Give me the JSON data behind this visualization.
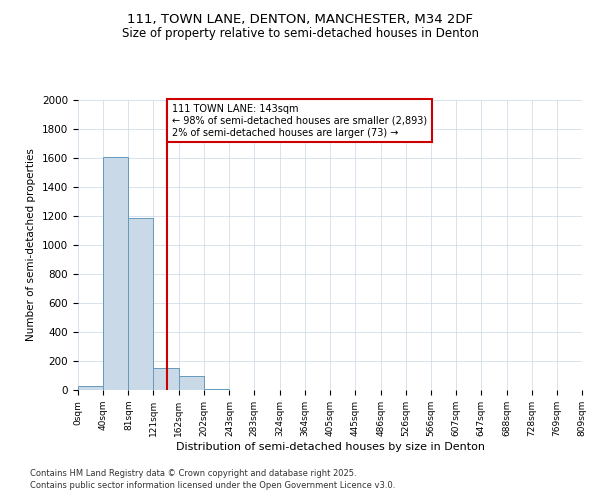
{
  "title_line1": "111, TOWN LANE, DENTON, MANCHESTER, M34 2DF",
  "title_line2": "Size of property relative to semi-detached houses in Denton",
  "xlabel": "Distribution of semi-detached houses by size in Denton",
  "ylabel": "Number of semi-detached properties",
  "property_size": 143,
  "property_label": "111 TOWN LANE: 143sqm",
  "pct_smaller": 98,
  "num_smaller": 2893,
  "pct_larger": 2,
  "num_larger": 73,
  "bin_edges": [
    0,
    40,
    81,
    121,
    162,
    202,
    243,
    283,
    324,
    364,
    405,
    445,
    486,
    526,
    566,
    607,
    647,
    688,
    728,
    769,
    809
  ],
  "bar_heights": [
    30,
    1610,
    1185,
    150,
    100,
    5,
    2,
    1,
    0,
    0,
    0,
    0,
    0,
    0,
    0,
    0,
    0,
    0,
    0,
    0
  ],
  "bar_color": "#c9d9e8",
  "bar_edge_color": "#6699bb",
  "vline_color": "#cc0000",
  "annotation_box_color": "#cc0000",
  "grid_color": "#c8d8e8",
  "background_color": "#ffffff",
  "ylim": [
    0,
    2000
  ],
  "yticks": [
    0,
    200,
    400,
    600,
    800,
    1000,
    1200,
    1400,
    1600,
    1800,
    2000
  ],
  "footnote1": "Contains HM Land Registry data © Crown copyright and database right 2025.",
  "footnote2": "Contains public sector information licensed under the Open Government Licence v3.0."
}
